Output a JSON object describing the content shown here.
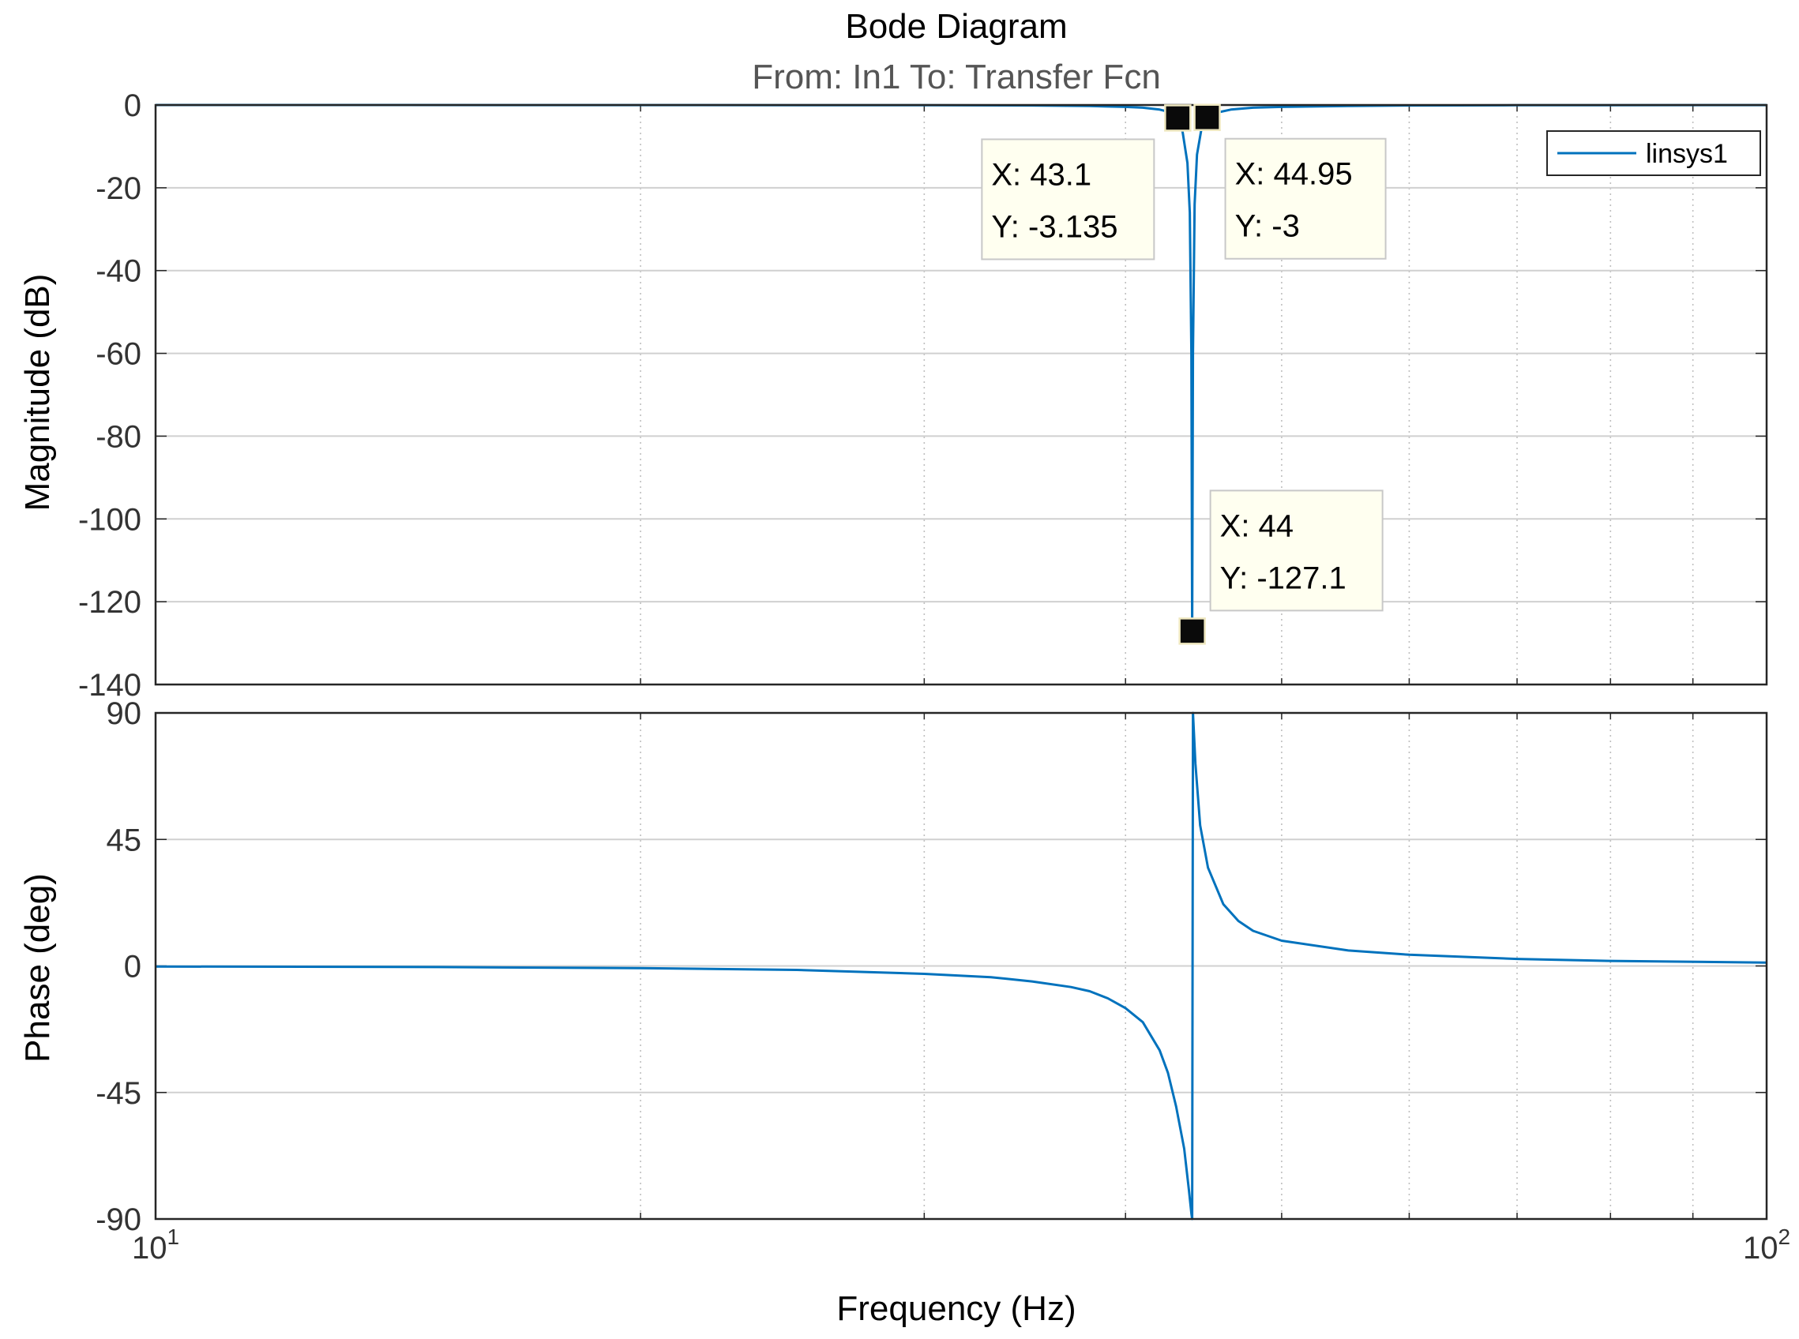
{
  "chart_data": {
    "type": "line",
    "title": "Bode Diagram",
    "subtitle": "From: In1  To: Transfer Fcn",
    "xlabel": "Frequency  (Hz)",
    "xscale": "log",
    "xlim": [
      10,
      100
    ],
    "x_ticks": [
      {
        "value": 10,
        "base": "10",
        "exp": "1"
      },
      {
        "value": 100,
        "base": "10",
        "exp": "2"
      }
    ],
    "grid": true,
    "colors": {
      "line": "#0072bd",
      "grid": "#d0d0d0",
      "axis": "#262626",
      "datatip_bg": "#fffff0",
      "datatip_border": "#c8c8c8"
    },
    "legend": {
      "placement": "top-right",
      "entries": [
        "linsys1"
      ]
    },
    "magnitude": {
      "ylabel": "Magnitude (dB)",
      "ylim": [
        -140,
        0
      ],
      "yticks": [
        "0",
        "-20",
        "-40",
        "-60",
        "-80",
        "-100",
        "-120",
        "-140"
      ],
      "series": [
        {
          "name": "linsys1",
          "x": [
            10,
            20,
            30,
            35,
            38,
            40,
            41,
            42,
            42.5,
            43,
            43.1,
            43.4,
            43.7,
            43.85,
            43.95,
            44,
            44.05,
            44.15,
            44.3,
            44.6,
            44.95,
            45.5,
            46.5,
            48,
            50,
            55,
            60,
            70,
            100
          ],
          "y": [
            0,
            -0.01,
            -0.05,
            -0.12,
            -0.25,
            -0.45,
            -0.65,
            -1.1,
            -1.6,
            -2.8,
            -3.135,
            -6.5,
            -14,
            -26,
            -60,
            -127.1,
            -60,
            -24,
            -12,
            -5.5,
            -3,
            -1.9,
            -1.1,
            -0.65,
            -0.45,
            -0.22,
            -0.12,
            -0.06,
            -0.02
          ]
        }
      ],
      "datatips": [
        {
          "x": 43.1,
          "y": -3.135,
          "label_x": "X: 43.1",
          "label_y": "Y: -3.135",
          "side": "left"
        },
        {
          "x": 44.95,
          "y": -3,
          "label_x": "X: 44.95",
          "label_y": "Y: -3",
          "side": "right"
        },
        {
          "x": 44,
          "y": -127.1,
          "label_x": "X: 44",
          "label_y": "Y: -127.1",
          "side": "right"
        }
      ]
    },
    "phase": {
      "ylabel": "Phase (deg)",
      "ylim": [
        -90,
        90
      ],
      "yticks": [
        "90",
        "45",
        "0",
        "-45",
        "-90"
      ],
      "series": [
        {
          "name": "linsys1",
          "x": [
            10,
            15,
            20,
            25,
            30,
            33,
            35,
            37,
            38,
            39,
            40,
            41,
            42,
            42.5,
            43,
            43.5,
            43.8,
            43.95,
            44,
            44.05,
            44.2,
            44.5,
            45,
            46,
            47,
            48,
            50,
            55,
            60,
            70,
            80,
            100
          ],
          "y": [
            -0.2,
            -0.4,
            -0.8,
            -1.4,
            -2.8,
            -4,
            -5.5,
            -7.5,
            -9,
            -11.5,
            -15,
            -20,
            -30,
            -38,
            -50,
            -65,
            -80,
            -88,
            -90,
            90,
            72,
            50,
            35,
            22,
            16,
            12.5,
            9,
            5.5,
            4,
            2.5,
            1.8,
            1.2
          ]
        }
      ]
    }
  }
}
